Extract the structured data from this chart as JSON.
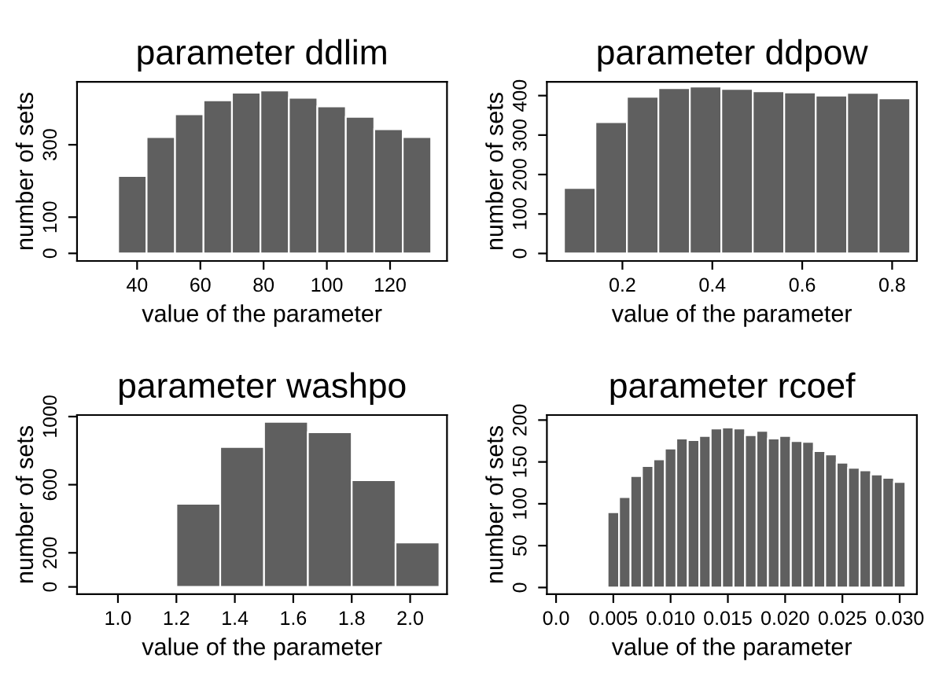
{
  "chart_data": [
    {
      "type": "histogram",
      "title": "parameter ddlim",
      "xlabel": "value of the parameter",
      "ylabel": "number of sets",
      "color": "#5f5f5f",
      "bins": [
        34,
        43,
        52,
        61,
        70,
        79,
        88,
        97,
        106,
        115,
        124,
        133
      ],
      "values": [
        214,
        321,
        384,
        423,
        444,
        450,
        430,
        406,
        377,
        343,
        321
      ],
      "xlim": [
        21,
        138
      ],
      "xticks": [
        40,
        60,
        80,
        100,
        120
      ],
      "ylim": [
        -21,
        474
      ],
      "yticks": [
        0,
        100,
        300
      ],
      "grid": false
    },
    {
      "type": "histogram",
      "title": "parameter ddpow",
      "xlabel": "value of the parameter",
      "ylabel": "number of sets",
      "color": "#5f5f5f",
      "bins": [
        0.07,
        0.14,
        0.21,
        0.28,
        0.35,
        0.42,
        0.49,
        0.56,
        0.63,
        0.7,
        0.77,
        0.84
      ],
      "values": [
        166,
        333,
        397,
        419,
        423,
        417,
        411,
        408,
        400,
        407,
        393
      ],
      "xlim": [
        0.032,
        0.855
      ],
      "xticks": [
        0.2,
        0.4,
        0.6,
        0.8
      ],
      "ylim": [
        -19,
        435
      ],
      "yticks": [
        0,
        100,
        200,
        300,
        400
      ],
      "grid": false
    },
    {
      "type": "histogram",
      "title": "parameter washpo",
      "xlabel": "value of the parameter",
      "ylabel": "number of sets",
      "color": "#5f5f5f",
      "bins": [
        1.2,
        1.35,
        1.5,
        1.65,
        1.8,
        1.95,
        2.1
      ],
      "values": [
        488,
        822,
        969,
        908,
        626,
        261
      ],
      "xlim": [
        0.86,
        2.126
      ],
      "xticks": [
        {
          "value": 1.0,
          "label": "1.0"
        },
        1.2,
        1.4,
        1.6,
        1.8,
        {
          "value": 2.0,
          "label": "2.0"
        }
      ],
      "ylim": [
        -43,
        1009
      ],
      "yticks": [
        0,
        200,
        600,
        1000
      ],
      "grid": false
    },
    {
      "type": "histogram",
      "title": "parameter rcoef",
      "xlabel": "value of the parameter",
      "ylabel": "number of sets",
      "color": "#5f5f5f",
      "bins": [
        0.0045,
        0.0055,
        0.0065,
        0.0075,
        0.0085,
        0.0095,
        0.0105,
        0.0115,
        0.0125,
        0.0135,
        0.0145,
        0.0155,
        0.0165,
        0.0175,
        0.0185,
        0.0195,
        0.0205,
        0.0215,
        0.0225,
        0.0235,
        0.0245,
        0.0255,
        0.0265,
        0.0275,
        0.0285,
        0.0295,
        0.0305
      ],
      "values": [
        90,
        108,
        133,
        145,
        153,
        166,
        178,
        176,
        181,
        190,
        191,
        190,
        182,
        187,
        178,
        181,
        175,
        174,
        163,
        159,
        149,
        143,
        140,
        135,
        131,
        126
      ],
      "xlim": [
        -0.0008,
        0.0315
      ],
      "xticks": [
        {
          "value": 0.0,
          "label": "0.0"
        },
        {
          "value": 0.005,
          "label": "0.005"
        },
        {
          "value": 0.01,
          "label": "0.010"
        },
        {
          "value": 0.015,
          "label": "0.015"
        },
        {
          "value": 0.02,
          "label": "0.020"
        },
        {
          "value": 0.025,
          "label": "0.025"
        },
        {
          "value": 0.03,
          "label": "0.030"
        }
      ],
      "ylim": [
        -8,
        206
      ],
      "yticks": [
        0,
        50,
        100,
        150,
        200
      ],
      "grid": false
    }
  ]
}
